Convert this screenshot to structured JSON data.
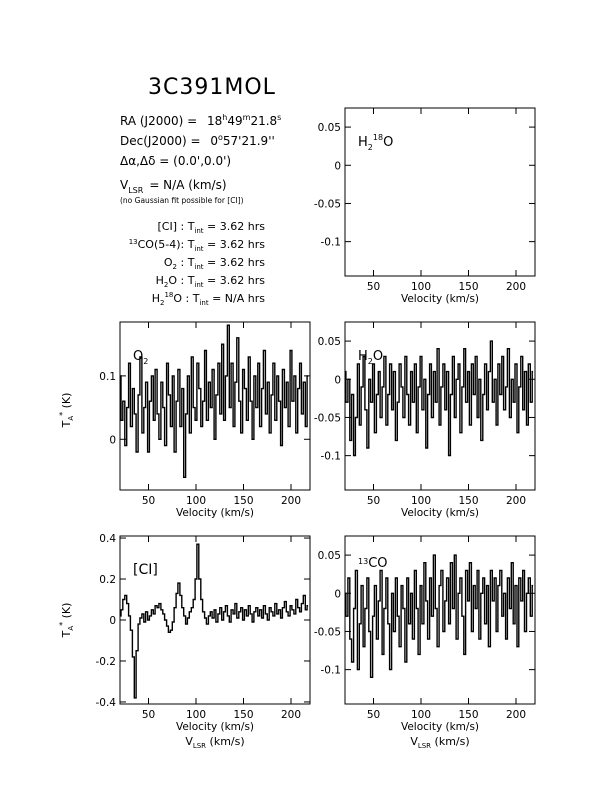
{
  "header": {
    "source_name": "3C391MOL",
    "ra_label": "RA (J2000) =",
    "ra_h": "18",
    "ra_m": "49",
    "ra_s": "21.8",
    "dec_label": "Dec(J2000) =",
    "dec_d": "0",
    "dec_rest": "57'21.9''",
    "offset_label": "Δα,Δδ = (0.0',0.0')",
    "vlsr_label": "V",
    "vlsr_sub": "LSR",
    "vlsr_value": "= N/A  (km/s)",
    "gauss_note": "(no Gaussian fit possible for [CI])",
    "tint_lines": [
      {
        "pre": "",
        "sup": "",
        "name": "[CI] :",
        "eq": "= 3.62 hrs"
      },
      {
        "pre": "13",
        "sup": "",
        "name": "CO(5-4):",
        "eq": "= 3.62 hrs"
      },
      {
        "pre": "",
        "sup": "",
        "name": "O2 :",
        "eq": "= 3.62 hrs"
      },
      {
        "pre": "",
        "sup": "",
        "name": "H2O :",
        "eq": "= 3.62 hrs"
      },
      {
        "pre": "",
        "sup": "18",
        "name": "H2 O :",
        "eq": "= N/A hrs"
      }
    ],
    "tint_T": "T",
    "tint_sub": "int"
  },
  "chart_data": [
    {
      "type": "line",
      "id": "h218o",
      "label": "H2 18O",
      "xlim": [
        20,
        220
      ],
      "ylim": [
        -0.145,
        0.075
      ],
      "xticks": [
        50,
        100,
        150,
        200
      ],
      "yticks": [
        0.05,
        0,
        -0.05,
        -0.1
      ],
      "ytick_labels": [
        "0.05",
        "0",
        "-0.05",
        "-0.1"
      ],
      "xlabel": "Velocity (km/s)",
      "ylabel": "",
      "x": [],
      "values": []
    },
    {
      "type": "line",
      "id": "o2",
      "label": "O2",
      "xlim": [
        20,
        220
      ],
      "ylim": [
        -0.08,
        0.185
      ],
      "xticks": [
        50,
        100,
        150,
        200
      ],
      "yticks": [
        0.1,
        0
      ],
      "ytick_labels": [
        "0.1",
        "0"
      ],
      "xlabel": "Velocity (km/s)",
      "ylabel": "TA* (K)",
      "x": [
        20,
        22,
        24,
        26,
        28,
        30,
        32,
        34,
        36,
        38,
        40,
        42,
        44,
        46,
        48,
        50,
        52,
        54,
        56,
        58,
        60,
        62,
        64,
        66,
        68,
        70,
        72,
        74,
        76,
        78,
        80,
        82,
        84,
        86,
        88,
        90,
        92,
        94,
        96,
        98,
        100,
        102,
        104,
        106,
        108,
        110,
        112,
        114,
        116,
        118,
        120,
        122,
        124,
        126,
        128,
        130,
        132,
        134,
        136,
        138,
        140,
        142,
        144,
        146,
        148,
        150,
        152,
        154,
        156,
        158,
        160,
        162,
        164,
        166,
        168,
        170,
        172,
        174,
        176,
        178,
        180,
        182,
        184,
        186,
        188,
        190,
        192,
        194,
        196,
        198,
        200,
        202,
        204,
        206,
        208,
        210,
        212,
        214,
        216,
        218
      ],
      "values": [
        0.1,
        0.03,
        0.06,
        -0.01,
        0.05,
        0.12,
        0.02,
        0.08,
        0.04,
        -0.02,
        0.07,
        0.13,
        0.01,
        0.05,
        0.09,
        -0.02,
        0.06,
        0.1,
        0.03,
        0.11,
        0.04,
        0.0,
        0.09,
        0.05,
        -0.01,
        0.12,
        0.07,
        0.02,
        0.1,
        -0.02,
        0.06,
        0.11,
        0.02,
        0.08,
        -0.06,
        0.04,
        0.1,
        0.01,
        0.13,
        0.05,
        0.03,
        0.12,
        0.08,
        0.02,
        0.06,
        0.14,
        0.03,
        0.09,
        0.05,
        0.11,
        0.0,
        0.07,
        0.12,
        0.04,
        0.15,
        0.03,
        0.1,
        0.18,
        0.05,
        0.12,
        0.02,
        0.09,
        0.16,
        0.06,
        0.01,
        0.11,
        0.08,
        0.03,
        0.13,
        0.06,
        0.0,
        0.1,
        0.05,
        0.12,
        0.02,
        0.08,
        0.14,
        0.04,
        0.09,
        0.01,
        0.07,
        0.12,
        0.03,
        0.1,
        0.06,
        -0.01,
        0.11,
        0.05,
        0.09,
        0.02,
        0.14,
        0.06,
        0.1,
        0.01,
        0.08,
        0.12,
        0.04,
        0.09,
        0.02,
        0.1
      ]
    },
    {
      "type": "line",
      "id": "h2o",
      "label": "H2O",
      "xlim": [
        20,
        220
      ],
      "ylim": [
        -0.145,
        0.075
      ],
      "xticks": [
        50,
        100,
        150,
        200
      ],
      "yticks": [
        0.05,
        0,
        -0.05,
        -0.1
      ],
      "ytick_labels": [
        "0.05",
        "0",
        "-0.05",
        "-0.1"
      ],
      "xlabel": "Velocity (km/s)",
      "ylabel": "",
      "x": [
        20,
        22,
        24,
        26,
        28,
        30,
        32,
        34,
        36,
        38,
        40,
        42,
        44,
        46,
        48,
        50,
        52,
        54,
        56,
        58,
        60,
        62,
        64,
        66,
        68,
        70,
        72,
        74,
        76,
        78,
        80,
        82,
        84,
        86,
        88,
        90,
        92,
        94,
        96,
        98,
        100,
        102,
        104,
        106,
        108,
        110,
        112,
        114,
        116,
        118,
        120,
        122,
        124,
        126,
        128,
        130,
        132,
        134,
        136,
        138,
        140,
        142,
        144,
        146,
        148,
        150,
        152,
        154,
        156,
        158,
        160,
        162,
        164,
        166,
        168,
        170,
        172,
        174,
        176,
        178,
        180,
        182,
        184,
        186,
        188,
        190,
        192,
        194,
        196,
        198,
        200,
        202,
        204,
        206,
        208,
        210,
        212,
        214,
        216,
        218
      ],
      "values": [
        0.01,
        -0.03,
        0.0,
        -0.08,
        -0.02,
        -0.1,
        -0.05,
        0.02,
        -0.06,
        -0.01,
        0.03,
        -0.04,
        -0.09,
        0.0,
        -0.03,
        0.02,
        -0.07,
        -0.02,
        0.01,
        -0.05,
        -0.01,
        0.03,
        -0.06,
        -0.02,
        0.02,
        -0.04,
        0.01,
        -0.08,
        -0.03,
        0.02,
        -0.01,
        -0.05,
        0.03,
        -0.02,
        -0.06,
        0.01,
        -0.03,
        0.02,
        -0.07,
        -0.01,
        0.03,
        -0.04,
        0.0,
        -0.09,
        -0.02,
        0.02,
        -0.05,
        0.01,
        -0.03,
        0.04,
        -0.06,
        -0.01,
        0.02,
        -0.04,
        0.01,
        -0.1,
        -0.02,
        0.03,
        -0.05,
        0.0,
        0.02,
        -0.07,
        -0.01,
        0.04,
        -0.03,
        0.01,
        -0.06,
        0.02,
        -0.02,
        0.03,
        -0.05,
        0.0,
        -0.08,
        -0.02,
        0.02,
        -0.04,
        0.01,
        0.05,
        -0.03,
        0.0,
        -0.06,
        0.02,
        -0.02,
        0.03,
        -0.04,
        -0.01,
        0.04,
        -0.05,
        0.0,
        -0.03,
        0.02,
        -0.07,
        -0.01,
        0.03,
        -0.04,
        0.01,
        -0.06,
        0.02,
        -0.03,
        0.01
      ]
    },
    {
      "type": "line",
      "id": "ci",
      "label": "[CI]",
      "xlim": [
        20,
        220
      ],
      "ylim": [
        -0.41,
        0.41
      ],
      "xticks": [
        50,
        100,
        150,
        200
      ],
      "yticks": [
        0.4,
        0.2,
        0,
        -0.2,
        -0.4
      ],
      "ytick_labels": [
        "0.4",
        "0.2",
        "0",
        "-0.2",
        "-0.4"
      ],
      "xlabel": "Velocity (km/s)",
      "xlabel2": "VLSR (km/s)",
      "ylabel": "TA* (K)",
      "x": [
        20,
        22,
        24,
        26,
        28,
        30,
        32,
        34,
        36,
        38,
        40,
        42,
        44,
        46,
        48,
        50,
        52,
        54,
        56,
        58,
        60,
        62,
        64,
        66,
        68,
        70,
        72,
        74,
        76,
        78,
        80,
        82,
        84,
        86,
        88,
        90,
        92,
        94,
        96,
        98,
        100,
        102,
        104,
        106,
        108,
        110,
        112,
        114,
        116,
        118,
        120,
        122,
        124,
        126,
        128,
        130,
        132,
        134,
        136,
        138,
        140,
        142,
        144,
        146,
        148,
        150,
        152,
        154,
        156,
        158,
        160,
        162,
        164,
        166,
        168,
        170,
        172,
        174,
        176,
        178,
        180,
        182,
        184,
        186,
        188,
        190,
        192,
        194,
        196,
        198,
        200,
        202,
        204,
        206,
        208,
        210,
        212,
        214,
        216,
        218
      ],
      "values": [
        0.02,
        0.05,
        0.1,
        0.12,
        0.08,
        0.02,
        -0.05,
        -0.18,
        -0.38,
        -0.15,
        -0.02,
        0.01,
        0.03,
        -0.01,
        0.04,
        0.0,
        0.02,
        0.05,
        0.03,
        0.07,
        0.06,
        0.08,
        0.05,
        0.03,
        0.0,
        -0.03,
        -0.06,
        -0.05,
        -0.01,
        0.06,
        0.13,
        0.18,
        0.12,
        0.06,
        0.02,
        -0.02,
        0.01,
        0.04,
        0.06,
        0.1,
        0.2,
        0.37,
        0.2,
        0.1,
        0.04,
        0.01,
        -0.02,
        0.02,
        0.04,
        0.01,
        0.05,
        -0.01,
        0.03,
        0.06,
        0.0,
        0.04,
        0.07,
        0.02,
        -0.01,
        0.05,
        0.03,
        0.08,
        0.01,
        0.04,
        0.06,
        0.0,
        0.05,
        0.02,
        0.07,
        0.03,
        -0.01,
        0.04,
        0.06,
        0.02,
        0.05,
        0.01,
        0.07,
        0.03,
        0.0,
        0.06,
        0.04,
        0.02,
        0.08,
        0.03,
        0.05,
        0.01,
        0.06,
        0.09,
        0.04,
        0.02,
        0.07,
        0.05,
        0.03,
        0.1,
        0.06,
        0.04,
        0.08,
        0.12,
        0.05,
        0.07
      ]
    },
    {
      "type": "line",
      "id": "13co",
      "label": "13CO",
      "xlim": [
        20,
        220
      ],
      "ylim": [
        -0.145,
        0.075
      ],
      "xticks": [
        50,
        100,
        150,
        200
      ],
      "yticks": [
        0.05,
        0,
        -0.05,
        -0.1
      ],
      "ytick_labels": [
        "0.05",
        "0",
        "-0.05",
        "-0.1"
      ],
      "xlabel": "Velocity (km/s)",
      "xlabel2": "VLSR (km/s)",
      "ylabel": "",
      "x": [
        20,
        22,
        24,
        26,
        28,
        30,
        32,
        34,
        36,
        38,
        40,
        42,
        44,
        46,
        48,
        50,
        52,
        54,
        56,
        58,
        60,
        62,
        64,
        66,
        68,
        70,
        72,
        74,
        76,
        78,
        80,
        82,
        84,
        86,
        88,
        90,
        92,
        94,
        96,
        98,
        100,
        102,
        104,
        106,
        108,
        110,
        112,
        114,
        116,
        118,
        120,
        122,
        124,
        126,
        128,
        130,
        132,
        134,
        136,
        138,
        140,
        142,
        144,
        146,
        148,
        150,
        152,
        154,
        156,
        158,
        160,
        162,
        164,
        166,
        168,
        170,
        172,
        174,
        176,
        178,
        180,
        182,
        184,
        186,
        188,
        190,
        192,
        194,
        196,
        198,
        200,
        202,
        204,
        206,
        208,
        210,
        212,
        214,
        216,
        218
      ],
      "values": [
        0.0,
        -0.03,
        0.02,
        -0.06,
        -0.09,
        -0.02,
        0.03,
        -0.1,
        -0.04,
        0.01,
        -0.07,
        -0.02,
        0.02,
        -0.05,
        -0.11,
        -0.03,
        0.01,
        -0.06,
        -0.01,
        0.03,
        -0.08,
        -0.02,
        0.02,
        -0.04,
        -0.1,
        0.0,
        -0.05,
        0.02,
        -0.03,
        -0.07,
        0.01,
        -0.02,
        -0.09,
        0.02,
        -0.04,
        0.0,
        -0.06,
        0.03,
        -0.02,
        -0.08,
        0.01,
        -0.04,
        0.04,
        -0.01,
        -0.06,
        0.02,
        -0.03,
        0.05,
        -0.02,
        -0.07,
        0.01,
        0.03,
        -0.05,
        -0.01,
        0.02,
        -0.04,
        0.04,
        -0.02,
        0.05,
        -0.06,
        0.0,
        0.02,
        -0.03,
        -0.08,
        0.03,
        -0.01,
        0.04,
        -0.05,
        0.01,
        -0.02,
        0.03,
        -0.06,
        0.0,
        0.02,
        -0.04,
        0.01,
        -0.07,
        0.03,
        -0.01,
        0.02,
        -0.05,
        0.01,
        0.03,
        -0.03,
        0.0,
        -0.06,
        0.02,
        -0.02,
        0.04,
        -0.04,
        0.01,
        -0.07,
        0.02,
        -0.01,
        0.03,
        -0.05,
        0.0,
        0.02,
        -0.03,
        0.01
      ]
    }
  ]
}
